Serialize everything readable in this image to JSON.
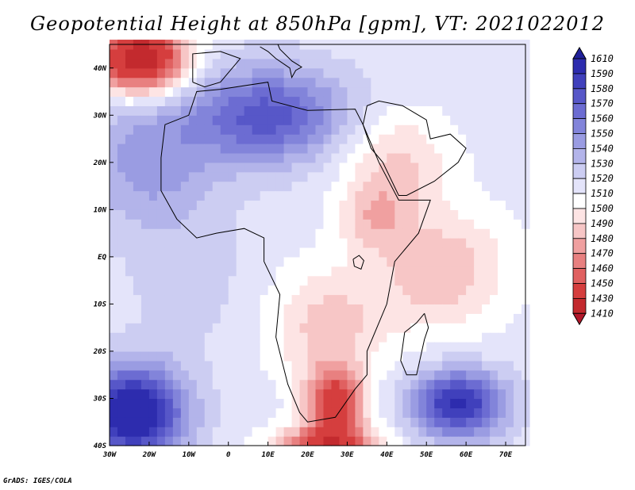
{
  "title": "Geopotential Height at 850hPa [gpm], VT: 2021022012",
  "credit": "GrADS: IGES/COLA",
  "colors": {
    "scale": [
      "#b2182b",
      "#c32a2e",
      "#d53e3e",
      "#e06060",
      "#e88080",
      "#f0a0a0",
      "#f7c6c6",
      "#fde4e4",
      "#ffffff",
      "#e4e4fa",
      "#cccdf2",
      "#b3b4ea",
      "#9a9ce2",
      "#8284da",
      "#6c6cd2",
      "#5757c8",
      "#4040bc",
      "#2d2cae",
      "#20209a"
    ],
    "coast": "#000000"
  },
  "map": {
    "lon_range": [
      -30,
      75
    ],
    "lat_range": [
      -40,
      45
    ],
    "lon_ticks": [
      {
        "value": -30,
        "label": "30W"
      },
      {
        "value": -20,
        "label": "20W"
      },
      {
        "value": -10,
        "label": "10W"
      },
      {
        "value": 0,
        "label": "0"
      },
      {
        "value": 10,
        "label": "10E"
      },
      {
        "value": 20,
        "label": "20E"
      },
      {
        "value": 30,
        "label": "30E"
      },
      {
        "value": 40,
        "label": "40E"
      },
      {
        "value": 50,
        "label": "50E"
      },
      {
        "value": 60,
        "label": "60E"
      },
      {
        "value": 70,
        "label": "70E"
      }
    ],
    "lat_ticks": [
      {
        "value": 40,
        "label": "40N"
      },
      {
        "value": 30,
        "label": "30N"
      },
      {
        "value": 20,
        "label": "20N"
      },
      {
        "value": 10,
        "label": "10N"
      },
      {
        "value": 0,
        "label": "EQ"
      },
      {
        "value": -10,
        "label": "10S"
      },
      {
        "value": -20,
        "label": "20S"
      },
      {
        "value": -30,
        "label": "30S"
      },
      {
        "value": -40,
        "label": "40S"
      }
    ]
  },
  "colorbar": {
    "levels": [
      "1610",
      "1590",
      "1580",
      "1570",
      "1560",
      "1550",
      "1540",
      "1530",
      "1520",
      "1510",
      "1500",
      "1490",
      "1480",
      "1470",
      "1460",
      "1450",
      "1430",
      "1410"
    ]
  },
  "field": {
    "base": 1515,
    "features": [
      {
        "lon": -22,
        "lat": 42,
        "amp": -105,
        "sx": 8,
        "sy": 5
      },
      {
        "lon": -24,
        "lat": -33,
        "amp": 95,
        "sx": 9,
        "sy": 7
      },
      {
        "lon": 58,
        "lat": -31,
        "amp": 80,
        "sx": 8,
        "sy": 5
      },
      {
        "lon": 10,
        "lat": 30,
        "amp": 60,
        "sx": 14,
        "sy": 7
      },
      {
        "lon": -20,
        "lat": 20,
        "amp": 30,
        "sx": 12,
        "sy": 10
      },
      {
        "lon": -10,
        "lat": -5,
        "amp": 10,
        "sx": 10,
        "sy": 10
      },
      {
        "lon": 27,
        "lat": -31,
        "amp": -75,
        "sx": 5,
        "sy": 5
      },
      {
        "lon": 25,
        "lat": -40,
        "amp": -70,
        "sx": 9,
        "sy": 3
      },
      {
        "lon": 25,
        "lat": -15,
        "amp": -30,
        "sx": 10,
        "sy": 9
      },
      {
        "lon": 42,
        "lat": 20,
        "amp": -28,
        "sx": 10,
        "sy": 8
      },
      {
        "lon": 37,
        "lat": 8,
        "amp": -25,
        "sx": 6,
        "sy": 5
      },
      {
        "lon": 55,
        "lat": 0,
        "amp": -22,
        "sx": 12,
        "sy": 8
      },
      {
        "lon": 52,
        "lat": -8,
        "amp": -15,
        "sx": 12,
        "sy": 8
      }
    ]
  }
}
